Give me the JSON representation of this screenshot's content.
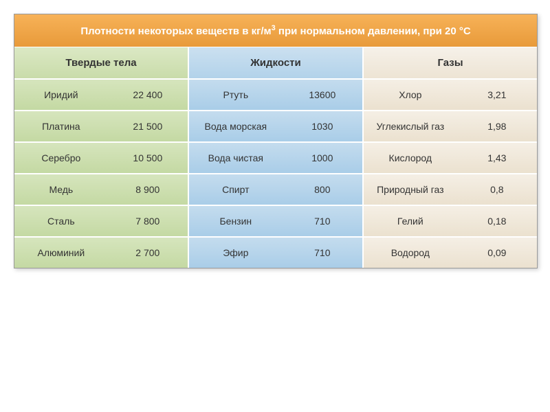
{
  "title_html": "Плотности некоторых веществ в кг/м<sup>3</sup> при нормальном давлении, при 20 °С",
  "headers": {
    "solid": "Твердые тела",
    "liquid": "Жидкости",
    "gas": "Газы"
  },
  "rows": [
    {
      "solid": {
        "name": "Иридий",
        "value": "22 400"
      },
      "liquid": {
        "name": "Ртуть",
        "value": "13600"
      },
      "gas": {
        "name": "Хлор",
        "value": "3,21"
      }
    },
    {
      "solid": {
        "name": "Платина",
        "value": "21 500"
      },
      "liquid": {
        "name": "Вода морская",
        "value": "1030"
      },
      "gas": {
        "name": "Углекислый газ",
        "value": "1,98"
      }
    },
    {
      "solid": {
        "name": "Серебро",
        "value": "10 500"
      },
      "liquid": {
        "name": "Вода чистая",
        "value": "1000"
      },
      "gas": {
        "name": "Кислород",
        "value": "1,43"
      }
    },
    {
      "solid": {
        "name": "Медь",
        "value": "8 900"
      },
      "liquid": {
        "name": "Спирт",
        "value": "800"
      },
      "gas": {
        "name": "Природный газ",
        "value": "0,8"
      }
    },
    {
      "solid": {
        "name": "Сталь",
        "value": "7 800"
      },
      "liquid": {
        "name": "Бензин",
        "value": "710"
      },
      "gas": {
        "name": "Гелий",
        "value": "0,18"
      }
    },
    {
      "solid": {
        "name": "Алюминий",
        "value": "2 700"
      },
      "liquid": {
        "name": "Эфир",
        "value": "710"
      },
      "gas": {
        "name": "Водород",
        "value": "0,09"
      }
    }
  ],
  "styling": {
    "title_bg_gradient": [
      "#f7b258",
      "#e89a3a"
    ],
    "title_text_color": "#ffffff",
    "solid_header_gradient": [
      "#dbe8c4",
      "#c9dcaa"
    ],
    "solid_cell_gradient": [
      "#d6e5bd",
      "#c4d9a3"
    ],
    "liquid_header_gradient": [
      "#cbe0f0",
      "#b2d2ea"
    ],
    "liquid_cell_gradient": [
      "#c4dcee",
      "#a9cde8"
    ],
    "gas_header_gradient": [
      "#f6f1e9",
      "#ede4d4"
    ],
    "gas_cell_gradient": [
      "#f5efe5",
      "#ebe1cf"
    ],
    "cell_text_color": "#333333",
    "border_color": "#ffffff",
    "title_fontsize": 15,
    "header_fontsize": 15,
    "cell_fontsize": 14,
    "font_family": "Arial"
  }
}
